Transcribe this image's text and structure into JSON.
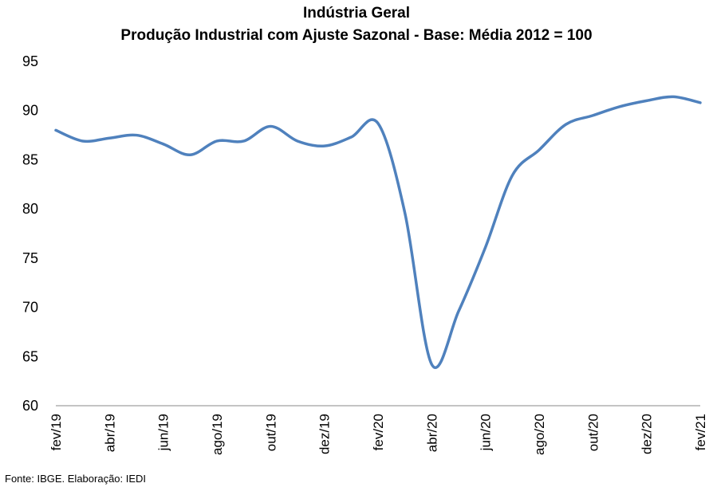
{
  "chart_data": {
    "type": "line",
    "title": "Indústria Geral",
    "subtitle": "Produção Industrial com Ajuste Sazonal - Base: Média 2012 = 100",
    "xlabel": "",
    "ylabel": "",
    "ylim": [
      60,
      95
    ],
    "yticks": [
      60,
      65,
      70,
      75,
      80,
      85,
      90,
      95
    ],
    "grid": false,
    "x_tick_labels": [
      "fev/19",
      "abr/19",
      "jun/19",
      "ago/19",
      "out/19",
      "dez/19",
      "fev/20",
      "abr/20",
      "jun/20",
      "ago/20",
      "out/20",
      "dez/20",
      "fev/21"
    ],
    "series": [
      {
        "color": "#4F81BD",
        "x": [
          "fev/19",
          "mar/19",
          "abr/19",
          "mai/19",
          "jun/19",
          "jul/19",
          "ago/19",
          "set/19",
          "out/19",
          "nov/19",
          "dez/19",
          "jan/20",
          "fev/20",
          "mar/20",
          "abr/20",
          "mai/20",
          "jun/20",
          "jul/20",
          "ago/20",
          "set/20",
          "out/20",
          "nov/20",
          "dez/20",
          "jan/21",
          "fev/21"
        ],
        "values": [
          88.0,
          86.9,
          87.2,
          87.5,
          86.6,
          85.5,
          86.9,
          86.9,
          88.4,
          86.9,
          86.4,
          87.3,
          88.7,
          79.6,
          64.2,
          69.6,
          76.1,
          83.4,
          86.0,
          88.6,
          89.5,
          90.4,
          91.0,
          91.4,
          90.8
        ]
      }
    ]
  },
  "source_text": "Fonte: IBGE. Elaboração: IEDI"
}
